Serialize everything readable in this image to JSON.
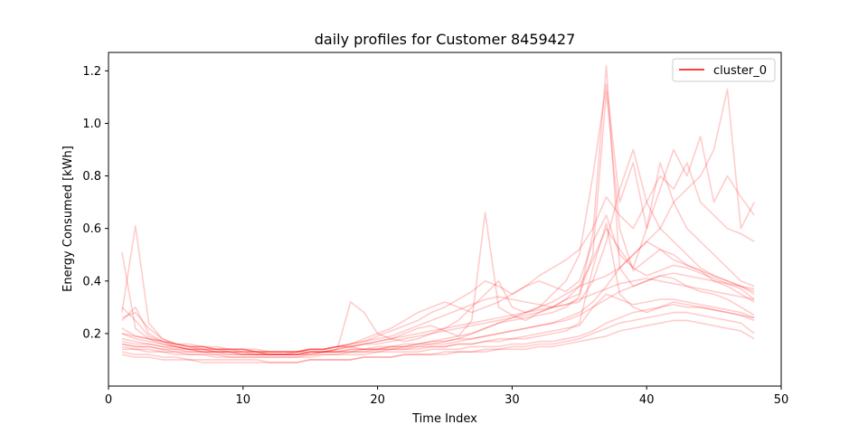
{
  "chart_data": {
    "type": "line",
    "title": "daily profiles for Customer 8459427",
    "xlabel": "Time Index",
    "ylabel": "Energy Consumed [kWh]",
    "xlim": [
      0,
      50
    ],
    "ylim": [
      0,
      1.27
    ],
    "xticks": [
      0,
      10,
      20,
      30,
      40,
      50
    ],
    "yticks": [
      0.2,
      0.4,
      0.6,
      0.8,
      1.0,
      1.2
    ],
    "ytick_labels": [
      "0.2",
      "0.4",
      "0.6",
      "0.8",
      "1.0",
      "1.2"
    ],
    "grid": false,
    "legend": {
      "location": "top-right",
      "entries": [
        {
          "name": "cluster_0",
          "color": "#ff0000"
        }
      ]
    },
    "line_color": "#ff0000",
    "line_alpha": 0.2,
    "x": [
      1,
      2,
      3,
      4,
      5,
      6,
      7,
      8,
      9,
      10,
      11,
      12,
      13,
      14,
      15,
      16,
      17,
      18,
      19,
      20,
      21,
      22,
      23,
      24,
      25,
      26,
      27,
      28,
      29,
      30,
      31,
      32,
      33,
      34,
      35,
      36,
      37,
      38,
      39,
      40,
      41,
      42,
      43,
      44,
      45,
      46,
      47,
      48
    ],
    "series": [
      {
        "name": "cluster_0",
        "values": [
          0.16,
          0.15,
          0.15,
          0.14,
          0.13,
          0.13,
          0.13,
          0.12,
          0.12,
          0.12,
          0.12,
          0.12,
          0.12,
          0.12,
          0.12,
          0.13,
          0.13,
          0.13,
          0.13,
          0.14,
          0.14,
          0.14,
          0.15,
          0.15,
          0.15,
          0.16,
          0.16,
          0.17,
          0.18,
          0.18,
          0.19,
          0.2,
          0.21,
          0.22,
          0.23,
          0.3,
          0.35,
          0.33,
          0.31,
          0.32,
          0.33,
          0.33,
          0.32,
          0.31,
          0.3,
          0.29,
          0.28,
          0.26
        ]
      },
      {
        "name": "",
        "values": [
          0.51,
          0.22,
          0.18,
          0.16,
          0.15,
          0.14,
          0.14,
          0.13,
          0.13,
          0.13,
          0.12,
          0.12,
          0.12,
          0.13,
          0.13,
          0.13,
          0.14,
          0.15,
          0.14,
          0.14,
          0.15,
          0.15,
          0.16,
          0.16,
          0.17,
          0.18,
          0.2,
          0.22,
          0.24,
          0.25,
          0.26,
          0.27,
          0.28,
          0.3,
          0.34,
          0.58,
          1.22,
          0.45,
          0.38,
          0.4,
          0.42,
          0.41,
          0.38,
          0.36,
          0.35,
          0.33,
          0.3,
          0.27
        ]
      },
      {
        "name": "",
        "values": [
          0.28,
          0.61,
          0.24,
          0.18,
          0.16,
          0.15,
          0.14,
          0.14,
          0.13,
          0.13,
          0.13,
          0.12,
          0.12,
          0.12,
          0.13,
          0.13,
          0.14,
          0.15,
          0.16,
          0.17,
          0.18,
          0.2,
          0.22,
          0.23,
          0.21,
          0.19,
          0.25,
          0.66,
          0.3,
          0.27,
          0.25,
          0.28,
          0.3,
          0.33,
          0.35,
          0.5,
          1.12,
          0.6,
          0.44,
          0.48,
          0.52,
          0.5,
          0.46,
          0.44,
          0.4,
          0.38,
          0.35,
          0.32
        ]
      },
      {
        "name": "",
        "values": [
          0.2,
          0.18,
          0.17,
          0.16,
          0.15,
          0.14,
          0.14,
          0.13,
          0.13,
          0.13,
          0.13,
          0.12,
          0.12,
          0.12,
          0.13,
          0.13,
          0.13,
          0.14,
          0.14,
          0.14,
          0.15,
          0.15,
          0.16,
          0.17,
          0.18,
          0.19,
          0.2,
          0.22,
          0.24,
          0.26,
          0.28,
          0.3,
          0.32,
          0.35,
          0.38,
          0.4,
          0.42,
          0.45,
          0.5,
          0.55,
          0.6,
          0.7,
          0.75,
          0.8,
          0.9,
          1.13,
          0.6,
          0.7
        ]
      },
      {
        "name": "",
        "values": [
          0.13,
          0.12,
          0.12,
          0.11,
          0.11,
          0.1,
          0.1,
          0.1,
          0.1,
          0.1,
          0.1,
          0.09,
          0.09,
          0.09,
          0.1,
          0.1,
          0.1,
          0.1,
          0.11,
          0.11,
          0.11,
          0.12,
          0.12,
          0.12,
          0.13,
          0.13,
          0.13,
          0.14,
          0.14,
          0.15,
          0.15,
          0.16,
          0.16,
          0.17,
          0.18,
          0.2,
          0.22,
          0.24,
          0.25,
          0.26,
          0.27,
          0.28,
          0.28,
          0.27,
          0.26,
          0.25,
          0.24,
          0.2
        ]
      },
      {
        "name": "",
        "values": [
          0.25,
          0.3,
          0.2,
          0.17,
          0.15,
          0.14,
          0.13,
          0.13,
          0.12,
          0.12,
          0.12,
          0.12,
          0.12,
          0.12,
          0.13,
          0.13,
          0.14,
          0.32,
          0.28,
          0.2,
          0.18,
          0.17,
          0.18,
          0.2,
          0.22,
          0.25,
          0.3,
          0.35,
          0.4,
          0.3,
          0.28,
          0.3,
          0.35,
          0.4,
          0.5,
          0.8,
          1.15,
          0.7,
          0.85,
          0.6,
          0.75,
          0.9,
          0.8,
          0.95,
          0.7,
          0.8,
          0.72,
          0.65
        ]
      },
      {
        "name": "",
        "values": [
          0.17,
          0.16,
          0.16,
          0.15,
          0.15,
          0.14,
          0.14,
          0.14,
          0.14,
          0.13,
          0.13,
          0.13,
          0.13,
          0.13,
          0.14,
          0.14,
          0.15,
          0.15,
          0.16,
          0.17,
          0.18,
          0.19,
          0.2,
          0.21,
          0.22,
          0.23,
          0.24,
          0.25,
          0.26,
          0.27,
          0.28,
          0.29,
          0.3,
          0.31,
          0.33,
          0.35,
          0.37,
          0.39,
          0.4,
          0.41,
          0.4,
          0.39,
          0.38,
          0.37,
          0.36,
          0.35,
          0.34,
          0.33
        ]
      },
      {
        "name": "",
        "values": [
          0.15,
          0.14,
          0.14,
          0.13,
          0.13,
          0.12,
          0.12,
          0.12,
          0.11,
          0.11,
          0.11,
          0.11,
          0.11,
          0.11,
          0.12,
          0.12,
          0.12,
          0.13,
          0.13,
          0.13,
          0.14,
          0.14,
          0.14,
          0.15,
          0.15,
          0.16,
          0.16,
          0.17,
          0.17,
          0.18,
          0.18,
          0.19,
          0.2,
          0.21,
          0.24,
          0.45,
          0.62,
          0.35,
          0.3,
          0.28,
          0.3,
          0.32,
          0.31,
          0.3,
          0.29,
          0.28,
          0.27,
          0.25
        ]
      },
      {
        "name": "",
        "values": [
          0.22,
          0.19,
          0.18,
          0.17,
          0.16,
          0.15,
          0.15,
          0.14,
          0.14,
          0.14,
          0.13,
          0.13,
          0.13,
          0.13,
          0.14,
          0.14,
          0.15,
          0.16,
          0.17,
          0.18,
          0.19,
          0.21,
          0.23,
          0.25,
          0.27,
          0.29,
          0.31,
          0.33,
          0.34,
          0.33,
          0.32,
          0.31,
          0.3,
          0.31,
          0.32,
          0.4,
          0.55,
          0.75,
          0.9,
          0.7,
          0.6,
          0.55,
          0.5,
          0.45,
          0.42,
          0.4,
          0.38,
          0.35
        ]
      },
      {
        "name": "",
        "values": [
          0.14,
          0.14,
          0.13,
          0.13,
          0.12,
          0.12,
          0.12,
          0.11,
          0.11,
          0.11,
          0.11,
          0.11,
          0.11,
          0.11,
          0.11,
          0.12,
          0.12,
          0.12,
          0.12,
          0.13,
          0.13,
          0.13,
          0.13,
          0.14,
          0.14,
          0.14,
          0.15,
          0.15,
          0.15,
          0.16,
          0.16,
          0.17,
          0.17,
          0.18,
          0.19,
          0.21,
          0.24,
          0.26,
          0.28,
          0.29,
          0.3,
          0.31,
          0.3,
          0.3,
          0.29,
          0.28,
          0.27,
          0.26
        ]
      },
      {
        "name": "",
        "values": [
          0.3,
          0.25,
          0.19,
          0.17,
          0.16,
          0.16,
          0.15,
          0.15,
          0.14,
          0.14,
          0.14,
          0.13,
          0.13,
          0.13,
          0.14,
          0.14,
          0.15,
          0.16,
          0.18,
          0.2,
          0.22,
          0.25,
          0.28,
          0.3,
          0.32,
          0.3,
          0.28,
          0.3,
          0.32,
          0.35,
          0.38,
          0.4,
          0.38,
          0.36,
          0.4,
          0.55,
          0.65,
          0.5,
          0.45,
          0.6,
          0.85,
          0.7,
          0.6,
          0.55,
          0.5,
          0.45,
          0.4,
          0.38
        ]
      },
      {
        "name": "",
        "values": [
          0.18,
          0.17,
          0.16,
          0.15,
          0.14,
          0.14,
          0.13,
          0.13,
          0.13,
          0.12,
          0.12,
          0.12,
          0.12,
          0.12,
          0.13,
          0.13,
          0.13,
          0.14,
          0.14,
          0.15,
          0.15,
          0.16,
          0.16,
          0.17,
          0.17,
          0.18,
          0.18,
          0.19,
          0.2,
          0.21,
          0.22,
          0.23,
          0.24,
          0.25,
          0.27,
          0.3,
          0.33,
          0.36,
          0.38,
          0.4,
          0.42,
          0.43,
          0.42,
          0.41,
          0.4,
          0.39,
          0.38,
          0.37
        ]
      },
      {
        "name": "",
        "values": [
          0.12,
          0.11,
          0.11,
          0.1,
          0.1,
          0.1,
          0.09,
          0.09,
          0.09,
          0.09,
          0.09,
          0.09,
          0.09,
          0.09,
          0.1,
          0.1,
          0.1,
          0.1,
          0.11,
          0.11,
          0.11,
          0.12,
          0.12,
          0.12,
          0.12,
          0.13,
          0.13,
          0.13,
          0.14,
          0.14,
          0.14,
          0.15,
          0.15,
          0.16,
          0.17,
          0.18,
          0.19,
          0.21,
          0.22,
          0.23,
          0.24,
          0.25,
          0.25,
          0.24,
          0.23,
          0.22,
          0.21,
          0.18
        ]
      },
      {
        "name": "",
        "values": [
          0.26,
          0.28,
          0.22,
          0.18,
          0.16,
          0.15,
          0.15,
          0.14,
          0.14,
          0.14,
          0.13,
          0.13,
          0.13,
          0.13,
          0.14,
          0.14,
          0.15,
          0.16,
          0.17,
          0.19,
          0.21,
          0.23,
          0.25,
          0.28,
          0.3,
          0.33,
          0.36,
          0.4,
          0.38,
          0.35,
          0.38,
          0.42,
          0.45,
          0.48,
          0.52,
          0.6,
          0.72,
          0.65,
          0.6,
          0.7,
          0.8,
          0.75,
          0.85,
          0.7,
          0.65,
          0.6,
          0.58,
          0.55
        ]
      },
      {
        "name": "",
        "values": [
          0.16,
          0.15,
          0.15,
          0.14,
          0.14,
          0.13,
          0.13,
          0.13,
          0.13,
          0.12,
          0.12,
          0.12,
          0.12,
          0.12,
          0.12,
          0.13,
          0.13,
          0.13,
          0.14,
          0.14,
          0.14,
          0.15,
          0.15,
          0.16,
          0.16,
          0.17,
          0.18,
          0.19,
          0.2,
          0.21,
          0.22,
          0.23,
          0.24,
          0.26,
          0.28,
          0.32,
          0.38,
          0.45,
          0.5,
          0.55,
          0.52,
          0.48,
          0.46,
          0.44,
          0.42,
          0.4,
          0.38,
          0.36
        ]
      },
      {
        "name": "",
        "values": [
          0.2,
          0.19,
          0.18,
          0.17,
          0.16,
          0.15,
          0.15,
          0.14,
          0.14,
          0.14,
          0.13,
          0.13,
          0.13,
          0.13,
          0.14,
          0.14,
          0.15,
          0.15,
          0.16,
          0.16,
          0.17,
          0.18,
          0.19,
          0.2,
          0.21,
          0.22,
          0.23,
          0.24,
          0.25,
          0.26,
          0.27,
          0.28,
          0.3,
          0.33,
          0.38,
          0.48,
          0.6,
          0.52,
          0.45,
          0.42,
          0.44,
          0.46,
          0.45,
          0.43,
          0.41,
          0.39,
          0.37,
          0.33
        ]
      }
    ]
  }
}
